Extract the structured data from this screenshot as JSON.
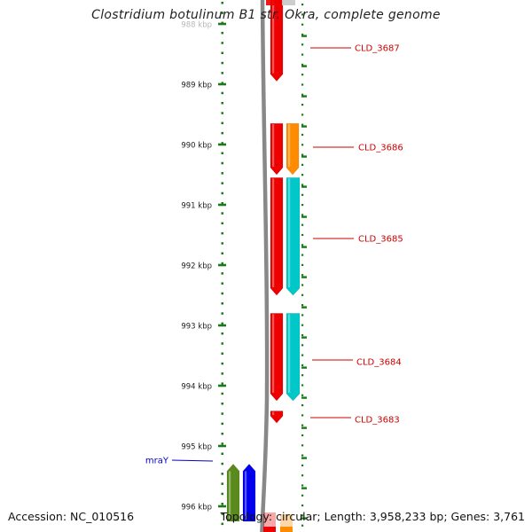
{
  "title": "Clostridium botulinum B1 str. Okra, complete genome",
  "footer": {
    "accession": "Accession: NC_010516",
    "summary": "Topology: circular; Length: 3,958,233 bp; Genes: 3,761"
  },
  "colors": {
    "cds_red": "#ee0000",
    "cds_orange": "#ff8c00",
    "cds_cyan": "#00c8c8",
    "cds_olive": "#5a8a1e",
    "cds_blue": "#0000ee",
    "tick_green": "#1a7a1a",
    "backbone_gray": "#888888",
    "label_red": "#cc0000",
    "label_blue": "#0000cc"
  },
  "scale": {
    "unit": "kbp",
    "ticks": [
      {
        "label": "988 kbp",
        "kb": 988
      },
      {
        "label": "989 kbp",
        "kb": 989
      },
      {
        "label": "990 kbp",
        "kb": 990
      },
      {
        "label": "991 kbp",
        "kb": 991
      },
      {
        "label": "992 kbp",
        "kb": 992
      },
      {
        "label": "993 kbp",
        "kb": 993
      },
      {
        "label": "994 kbp",
        "kb": 994
      },
      {
        "label": "995 kbp",
        "kb": 995
      },
      {
        "label": "996 kbp",
        "kb": 996
      }
    ]
  },
  "features": [
    {
      "name": "CLD_3687",
      "track": "red",
      "start_kb": 987.6,
      "end_kb": 988.95,
      "label_color": "red"
    },
    {
      "name": "CLD_3686",
      "track": "red",
      "start_kb": 989.65,
      "end_kb": 990.5,
      "label_color": "red"
    },
    {
      "name": "CLD_3686",
      "track": "orange",
      "start_kb": 989.65,
      "end_kb": 990.5
    },
    {
      "name": "CLD_3685",
      "track": "red",
      "start_kb": 990.55,
      "end_kb": 992.5,
      "label_color": "red"
    },
    {
      "name": "CLD_3685",
      "track": "cyan",
      "start_kb": 990.55,
      "end_kb": 992.5
    },
    {
      "name": "CLD_3684",
      "track": "red",
      "start_kb": 992.8,
      "end_kb": 994.25,
      "label_color": "red"
    },
    {
      "name": "CLD_3684",
      "track": "cyan",
      "start_kb": 992.8,
      "end_kb": 994.25
    },
    {
      "name": "CLD_3683",
      "track": "red",
      "start_kb": 994.42,
      "end_kb": 994.62,
      "label_color": "red"
    },
    {
      "name": "mraY",
      "track": "olive",
      "start_kb": 995.3,
      "end_kb": 996.25,
      "label_color": "blue",
      "reverse": true
    },
    {
      "name": "mraY",
      "track": "blue",
      "start_kb": 995.3,
      "end_kb": 996.25,
      "reverse": true
    }
  ],
  "labels": [
    {
      "text": "CLD_3687",
      "color": "red"
    },
    {
      "text": "CLD_3686",
      "color": "red"
    },
    {
      "text": "CLD_3685",
      "color": "red"
    },
    {
      "text": "CLD_3684",
      "color": "red"
    },
    {
      "text": "CLD_3683",
      "color": "red"
    },
    {
      "text": "mraY",
      "color": "blue"
    }
  ]
}
